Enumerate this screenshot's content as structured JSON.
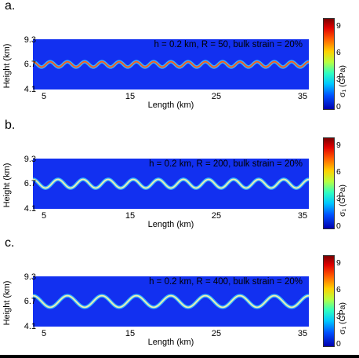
{
  "chart_data": [
    {
      "type": "heatmap",
      "panel_label": "a.",
      "annotation": "h = 0.2 km, R = 50, bulk strain = 20%",
      "xlabel": "Length (km)",
      "ylabel": "Height (km)",
      "xticks": [
        "5",
        "15",
        "25",
        "35"
      ],
      "yticks": [
        "9.3",
        "6.7",
        "4.1"
      ],
      "xlim": [
        4,
        36
      ],
      "ylim": [
        4.1,
        9.3
      ],
      "layer_center": 6.7,
      "fold_count": 16,
      "fold_amplitude_km": 0.28,
      "colorbar": {
        "label": "σ₁ (GPa)",
        "ticks": [
          "9",
          "6",
          "3",
          "0"
        ],
        "range": [
          0,
          10
        ]
      },
      "colors": {
        "background": "#1230f0",
        "layer_peak": "#ff5a1a",
        "layer_edge": "#3cc8ff"
      }
    },
    {
      "type": "heatmap",
      "panel_label": "b.",
      "annotation": "h = 0.2 km, R = 200, bulk strain = 20%",
      "xlabel": "Length (km)",
      "ylabel": "Height (km)",
      "xticks": [
        "5",
        "15",
        "25",
        "35"
      ],
      "yticks": [
        "9.3",
        "6.7",
        "4.1"
      ],
      "xlim": [
        4,
        36
      ],
      "ylim": [
        4.1,
        9.3
      ],
      "layer_center": 6.7,
      "fold_count": 11,
      "fold_amplitude_km": 0.45,
      "colorbar": {
        "label": "σ₁ (GPa)",
        "ticks": [
          "9",
          "6",
          "3",
          "0"
        ],
        "range": [
          0,
          10
        ]
      },
      "colors": {
        "background": "#1230f0",
        "layer_peak": "#f0f0b0",
        "layer_edge": "#3cc8ff"
      }
    },
    {
      "type": "heatmap",
      "panel_label": "c.",
      "annotation": "h = 0.2 km, R = 400, bulk strain = 20%",
      "xlabel": "Length (km)",
      "ylabel": "Height (km)",
      "xticks": [
        "5",
        "15",
        "25",
        "35"
      ],
      "yticks": [
        "9.3",
        "6.7",
        "4.1"
      ],
      "xlim": [
        4,
        36
      ],
      "ylim": [
        4.1,
        9.3
      ],
      "layer_center": 6.7,
      "fold_count": 8,
      "fold_amplitude_km": 0.6,
      "colorbar": {
        "label": "σ₁ (GPa)",
        "ticks": [
          "9",
          "6",
          "3",
          "0"
        ],
        "range": [
          0,
          10
        ]
      },
      "colors": {
        "background": "#1230f0",
        "layer_peak": "#f0f0b0",
        "layer_edge": "#3cc8ff"
      }
    }
  ]
}
